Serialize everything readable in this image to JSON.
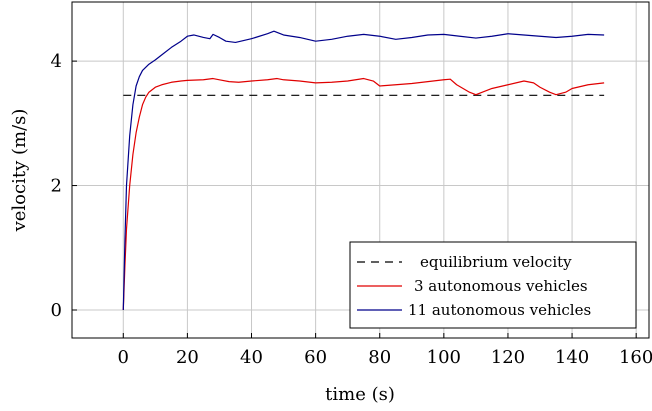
{
  "chart_data": {
    "type": "line",
    "xlabel": "time (s)",
    "ylabel": "velocity (m/s)",
    "xlim": [
      -16,
      164
    ],
    "ylim": [
      -0.45,
      4.95
    ],
    "xticks": [
      0,
      20,
      40,
      60,
      80,
      100,
      120,
      140,
      160
    ],
    "yticks": [
      0,
      2,
      4
    ],
    "grid": true,
    "legend_position": "bottom-right",
    "colors": {
      "equilibrium": "#000000",
      "three": "#e00000",
      "eleven": "#00008b",
      "grid": "#c8c8c8"
    },
    "series": [
      {
        "name": "equilibrium velocity",
        "style": "dashed",
        "x": [
          0,
          150
        ],
        "y": [
          3.45,
          3.45
        ]
      },
      {
        "name": "3 autonomous vehicles",
        "style": "solid",
        "x": [
          0,
          0.5,
          1,
          2,
          3,
          4,
          5,
          6,
          7,
          8,
          10,
          12,
          15,
          18,
          20,
          25,
          28,
          30,
          33,
          36,
          40,
          45,
          48,
          50,
          55,
          60,
          65,
          70,
          75,
          78,
          80,
          85,
          90,
          95,
          100,
          102,
          104,
          108,
          110,
          112,
          115,
          120,
          125,
          128,
          130,
          133,
          135,
          138,
          140,
          145,
          150
        ],
        "y": [
          0,
          0.7,
          1.3,
          2.0,
          2.5,
          2.85,
          3.1,
          3.3,
          3.42,
          3.5,
          3.58,
          3.62,
          3.66,
          3.68,
          3.69,
          3.7,
          3.72,
          3.7,
          3.67,
          3.66,
          3.68,
          3.7,
          3.72,
          3.7,
          3.68,
          3.65,
          3.66,
          3.68,
          3.72,
          3.68,
          3.6,
          3.62,
          3.64,
          3.67,
          3.7,
          3.71,
          3.62,
          3.5,
          3.46,
          3.5,
          3.56,
          3.62,
          3.68,
          3.65,
          3.58,
          3.5,
          3.46,
          3.5,
          3.56,
          3.62,
          3.65
        ]
      },
      {
        "name": "11 autonomous vehicles",
        "style": "solid",
        "x": [
          0,
          0.5,
          1,
          2,
          3,
          4,
          5,
          6,
          7,
          8,
          10,
          12,
          15,
          18,
          20,
          22,
          25,
          27,
          28,
          30,
          32,
          35,
          40,
          45,
          47,
          50,
          55,
          60,
          65,
          70,
          75,
          80,
          85,
          90,
          95,
          100,
          105,
          110,
          115,
          120,
          125,
          130,
          135,
          140,
          145,
          150
        ],
        "y": [
          0,
          1.1,
          2.0,
          2.8,
          3.3,
          3.6,
          3.75,
          3.85,
          3.9,
          3.95,
          4.02,
          4.1,
          4.22,
          4.32,
          4.4,
          4.42,
          4.38,
          4.36,
          4.43,
          4.38,
          4.32,
          4.3,
          4.36,
          4.44,
          4.48,
          4.42,
          4.38,
          4.32,
          4.35,
          4.4,
          4.43,
          4.4,
          4.35,
          4.38,
          4.42,
          4.43,
          4.4,
          4.37,
          4.4,
          4.44,
          4.42,
          4.4,
          4.38,
          4.4,
          4.43,
          4.42
        ]
      }
    ]
  }
}
